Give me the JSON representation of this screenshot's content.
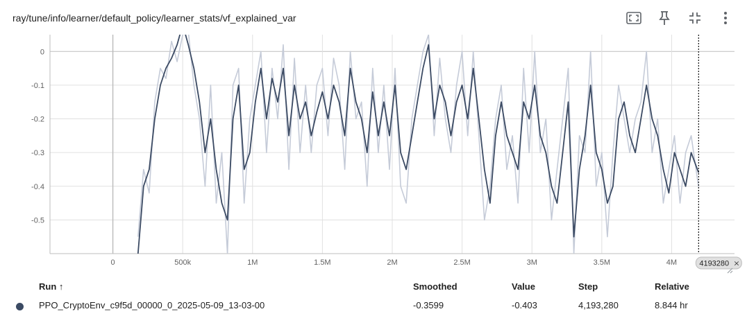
{
  "header": {
    "title": "ray/tune/info/learner/default_policy/learner_stats/vf_explained_var",
    "icons": [
      "fit-domain-icon",
      "pin-icon",
      "collapse-icon",
      "more-vert-icon"
    ]
  },
  "chart_data": {
    "type": "line",
    "title": "ray/tune/info/learner/default_policy/learner_stats/vf_explained_var",
    "x_ticks": [
      "0",
      "500k",
      "1M",
      "1.5M",
      "2M",
      "2.5M",
      "3M",
      "3.5M",
      "4M"
    ],
    "x_tick_values": [
      0,
      500000,
      1000000,
      1500000,
      2000000,
      2500000,
      3000000,
      3500000,
      4000000
    ],
    "y_ticks": [
      "0",
      "-0.1",
      "-0.2",
      "-0.3",
      "-0.4",
      "-0.5"
    ],
    "y_tick_values": [
      0,
      -0.1,
      -0.2,
      -0.3,
      -0.4,
      -0.5
    ],
    "xlim": [
      -450000,
      4450000
    ],
    "ylim": [
      -0.6,
      0.05
    ],
    "grid": true,
    "cursor": {
      "x": 4193280,
      "label": "4193280"
    },
    "series": [
      {
        "name": "smoothed",
        "color": "#3b4a63",
        "x": [
          180000,
          220000,
          260000,
          300000,
          340000,
          380000,
          420000,
          460000,
          500000,
          540000,
          580000,
          620000,
          660000,
          700000,
          740000,
          780000,
          820000,
          860000,
          900000,
          940000,
          980000,
          1020000,
          1060000,
          1100000,
          1140000,
          1180000,
          1220000,
          1260000,
          1300000,
          1340000,
          1380000,
          1420000,
          1460000,
          1500000,
          1540000,
          1580000,
          1620000,
          1660000,
          1700000,
          1740000,
          1780000,
          1820000,
          1860000,
          1900000,
          1940000,
          1980000,
          2020000,
          2060000,
          2100000,
          2140000,
          2180000,
          2220000,
          2260000,
          2300000,
          2340000,
          2380000,
          2420000,
          2460000,
          2500000,
          2540000,
          2580000,
          2620000,
          2660000,
          2700000,
          2740000,
          2780000,
          2820000,
          2860000,
          2900000,
          2940000,
          2980000,
          3020000,
          3060000,
          3100000,
          3140000,
          3180000,
          3220000,
          3260000,
          3300000,
          3340000,
          3380000,
          3420000,
          3460000,
          3500000,
          3540000,
          3580000,
          3620000,
          3660000,
          3700000,
          3740000,
          3780000,
          3820000,
          3860000,
          3900000,
          3940000,
          3980000,
          4020000,
          4060000,
          4100000,
          4140000,
          4193280
        ],
        "y": [
          -0.6,
          -0.4,
          -0.35,
          -0.2,
          -0.1,
          -0.05,
          -0.02,
          0.02,
          0.08,
          0.02,
          -0.05,
          -0.15,
          -0.3,
          -0.2,
          -0.35,
          -0.45,
          -0.5,
          -0.2,
          -0.1,
          -0.35,
          -0.3,
          -0.15,
          -0.05,
          -0.2,
          -0.08,
          -0.15,
          -0.05,
          -0.25,
          -0.1,
          -0.2,
          -0.15,
          -0.25,
          -0.18,
          -0.12,
          -0.2,
          -0.1,
          -0.15,
          -0.25,
          -0.05,
          -0.15,
          -0.2,
          -0.3,
          -0.12,
          -0.25,
          -0.15,
          -0.25,
          -0.1,
          -0.3,
          -0.35,
          -0.25,
          -0.15,
          -0.05,
          0.02,
          -0.2,
          -0.1,
          -0.15,
          -0.25,
          -0.15,
          -0.1,
          -0.2,
          -0.05,
          -0.2,
          -0.35,
          -0.45,
          -0.25,
          -0.15,
          -0.25,
          -0.3,
          -0.35,
          -0.15,
          -0.2,
          -0.1,
          -0.25,
          -0.3,
          -0.4,
          -0.45,
          -0.3,
          -0.15,
          -0.55,
          -0.35,
          -0.25,
          -0.1,
          -0.3,
          -0.35,
          -0.45,
          -0.4,
          -0.2,
          -0.15,
          -0.25,
          -0.3,
          -0.2,
          -0.1,
          -0.2,
          -0.25,
          -0.35,
          -0.42,
          -0.3,
          -0.35,
          -0.4,
          -0.3,
          -0.3599
        ]
      },
      {
        "name": "raw",
        "color": "#c5cbd8",
        "x": [
          180000,
          220000,
          260000,
          300000,
          340000,
          380000,
          420000,
          460000,
          500000,
          540000,
          580000,
          620000,
          660000,
          700000,
          740000,
          780000,
          820000,
          860000,
          900000,
          940000,
          980000,
          1020000,
          1060000,
          1100000,
          1140000,
          1180000,
          1220000,
          1260000,
          1300000,
          1340000,
          1380000,
          1420000,
          1460000,
          1500000,
          1540000,
          1580000,
          1620000,
          1660000,
          1700000,
          1740000,
          1780000,
          1820000,
          1860000,
          1900000,
          1940000,
          1980000,
          2020000,
          2060000,
          2100000,
          2140000,
          2180000,
          2220000,
          2260000,
          2300000,
          2340000,
          2380000,
          2420000,
          2460000,
          2500000,
          2540000,
          2580000,
          2620000,
          2660000,
          2700000,
          2740000,
          2780000,
          2820000,
          2860000,
          2900000,
          2940000,
          2980000,
          3020000,
          3060000,
          3100000,
          3140000,
          3180000,
          3220000,
          3260000,
          3300000,
          3340000,
          3380000,
          3420000,
          3460000,
          3500000,
          3540000,
          3580000,
          3620000,
          3660000,
          3700000,
          3740000,
          3780000,
          3820000,
          3860000,
          3900000,
          3940000,
          3980000,
          4020000,
          4060000,
          4100000,
          4140000,
          4193280
        ],
        "y": [
          -0.55,
          -0.35,
          -0.42,
          -0.15,
          -0.05,
          -0.08,
          0.03,
          -0.03,
          0.05,
          0.06,
          -0.1,
          -0.2,
          -0.4,
          -0.1,
          -0.45,
          -0.3,
          -0.6,
          -0.1,
          -0.05,
          -0.45,
          -0.2,
          -0.1,
          0.0,
          -0.3,
          -0.05,
          -0.2,
          0.02,
          -0.35,
          -0.02,
          -0.3,
          -0.1,
          -0.3,
          -0.1,
          -0.05,
          -0.25,
          -0.02,
          -0.1,
          -0.35,
          0.0,
          -0.2,
          -0.15,
          -0.4,
          -0.05,
          -0.3,
          -0.1,
          -0.35,
          -0.05,
          -0.4,
          -0.45,
          -0.2,
          -0.1,
          0.0,
          0.05,
          -0.25,
          -0.02,
          -0.2,
          -0.3,
          -0.1,
          0.0,
          -0.25,
          0.0,
          -0.25,
          -0.5,
          -0.4,
          -0.2,
          -0.1,
          -0.35,
          -0.25,
          -0.45,
          -0.05,
          -0.3,
          0.0,
          -0.3,
          -0.2,
          -0.5,
          -0.35,
          -0.2,
          -0.05,
          -0.6,
          -0.25,
          -0.3,
          0.0,
          -0.4,
          -0.3,
          -0.55,
          -0.3,
          -0.1,
          -0.2,
          -0.3,
          -0.2,
          -0.15,
          0.0,
          -0.3,
          -0.2,
          -0.45,
          -0.35,
          -0.25,
          -0.45,
          -0.3,
          -0.25,
          -0.403
        ]
      }
    ]
  },
  "table": {
    "headers": {
      "run": "Run ↑",
      "smoothed": "Smoothed",
      "value": "Value",
      "step": "Step",
      "relative": "Relative"
    },
    "rows": [
      {
        "run": "PPO_CryptoEnv_c9f5d_00000_0_2025-05-09_13-03-00",
        "smoothed": "-0.3599",
        "value": "-0.403",
        "step": "4,193,280",
        "relative": "8.844 hr",
        "color": "#3b4a63"
      }
    ]
  }
}
